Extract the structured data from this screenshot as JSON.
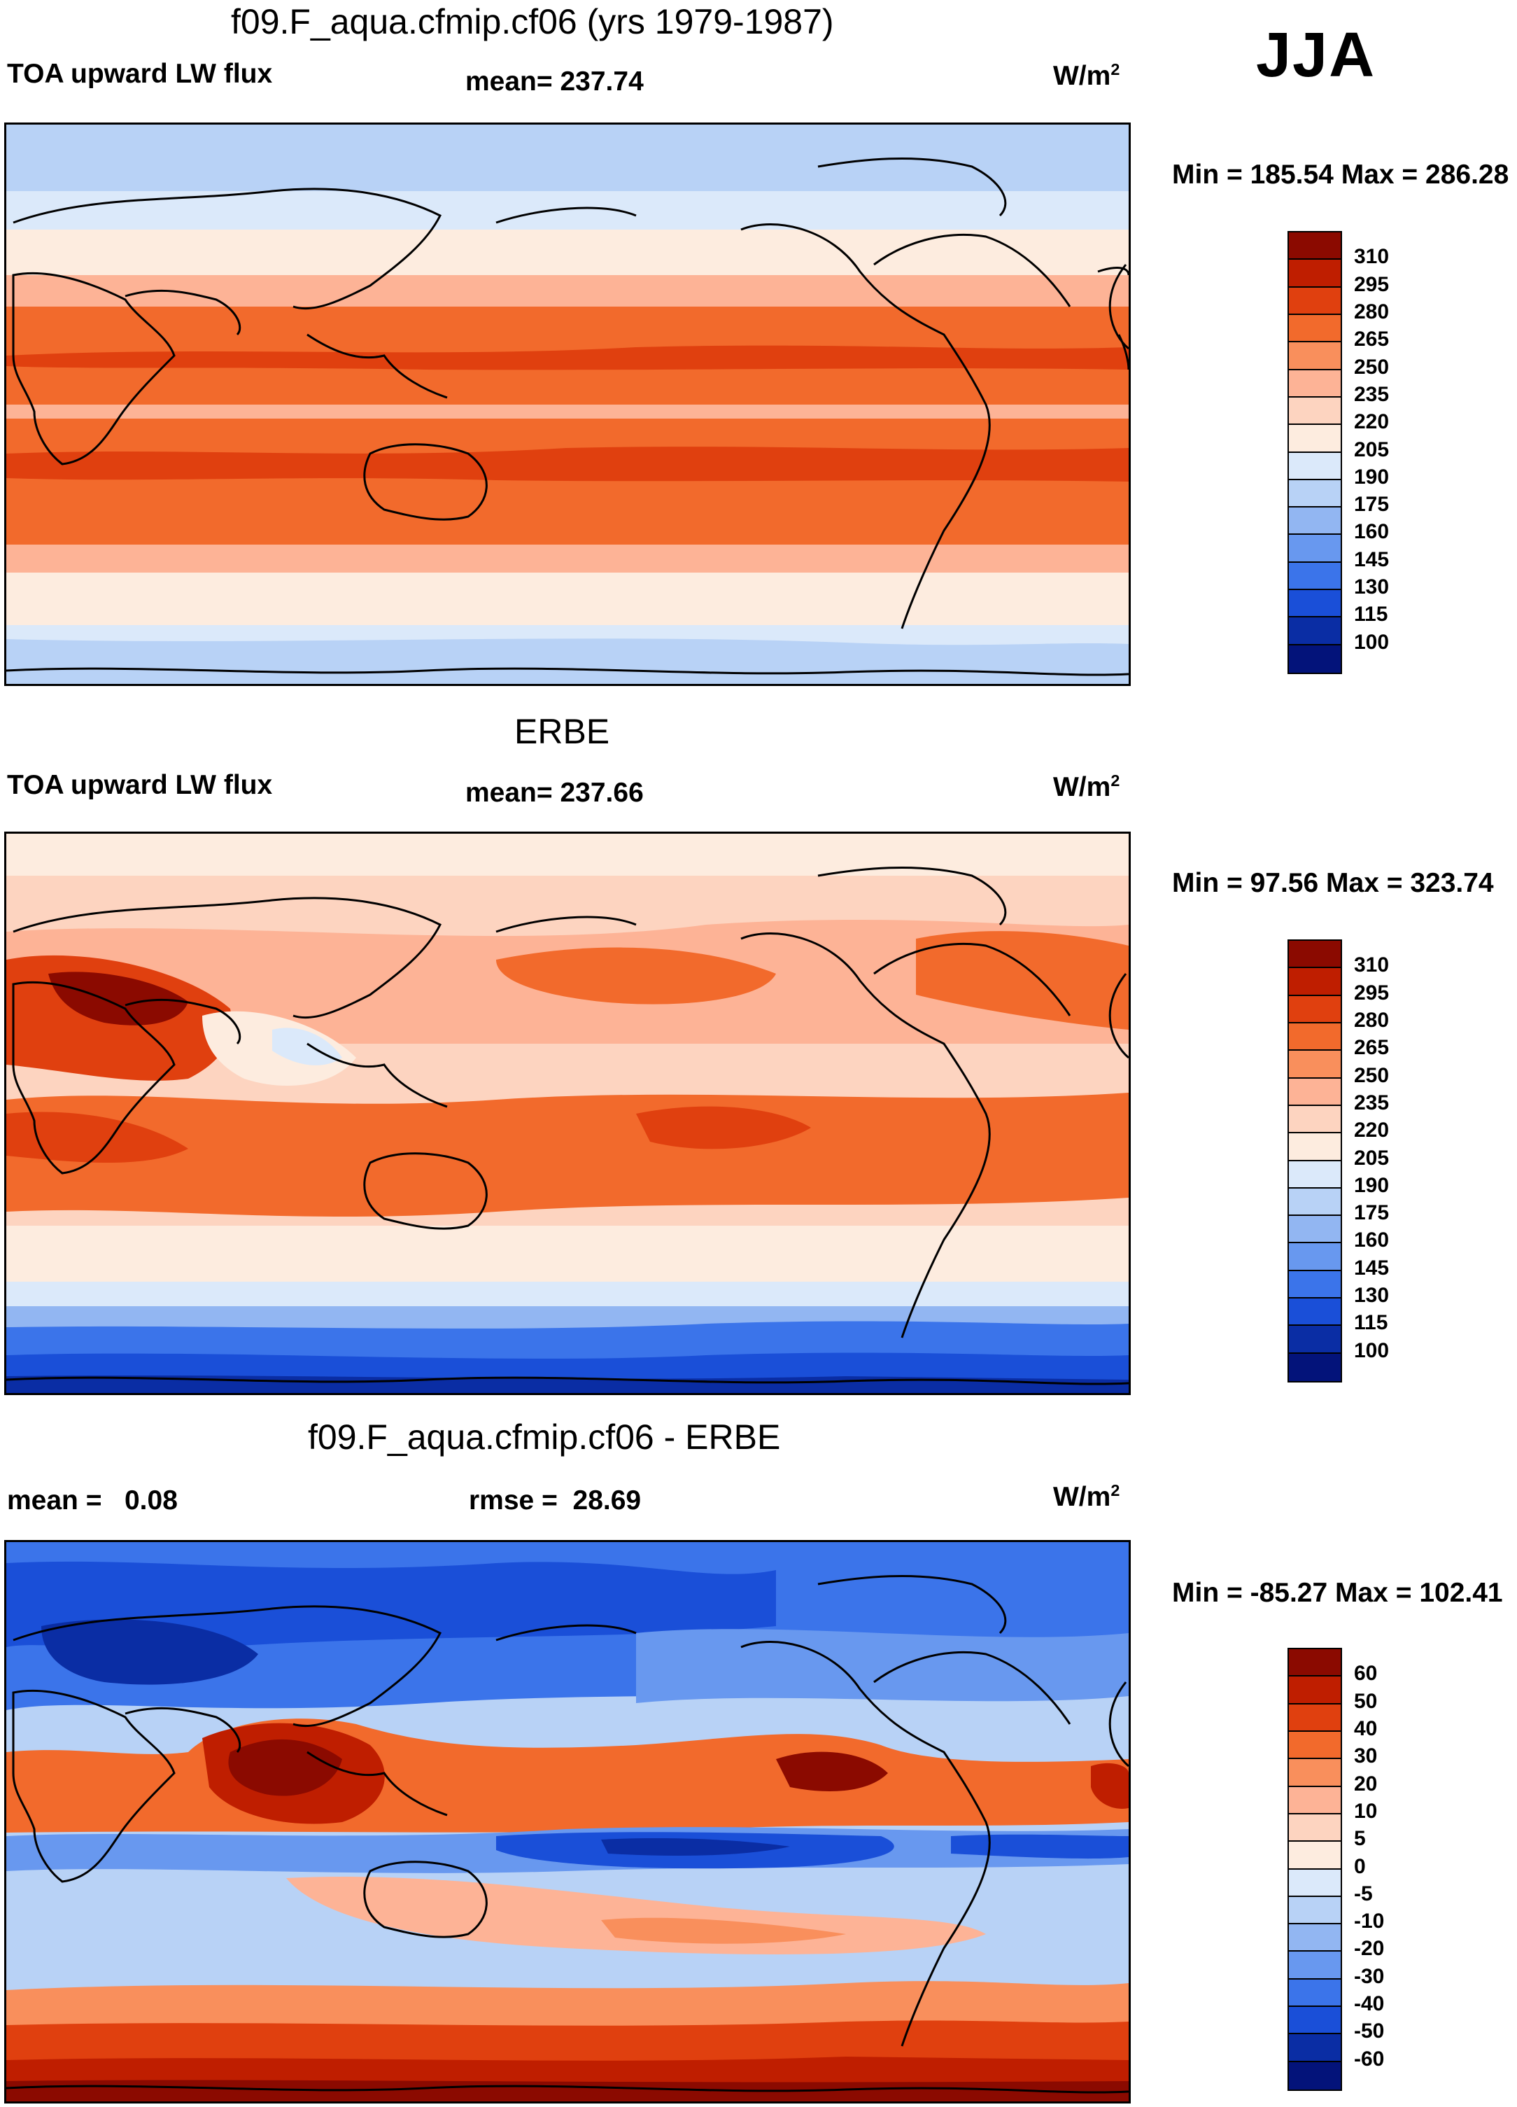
{
  "season": "JJA",
  "units_base": "W/m",
  "units_exp": "2",
  "panels": [
    {
      "title": "f09.F_aqua.cfmip.cf06 (yrs 1979-1987)",
      "left_label": "TOA upward LW flux",
      "center_label": "mean= 237.74",
      "minmax": "Min = 185.54 Max = 286.28"
    },
    {
      "title": "ERBE",
      "left_label": "TOA upward LW flux",
      "center_label": "mean= 237.66",
      "minmax": "Min =  97.56 Max = 323.74"
    },
    {
      "title": "f09.F_aqua.cfmip.cf06 - ERBE",
      "left_label": "mean =   0.08",
      "center_label": "rmse =  28.69",
      "minmax": "Min = -85.27 Max = 102.41"
    }
  ],
  "colorbars": {
    "flux": {
      "labels": [
        "310",
        "295",
        "280",
        "265",
        "250",
        "235",
        "220",
        "205",
        "190",
        "175",
        "160",
        "145",
        "130",
        "115",
        "100"
      ],
      "colors": [
        "#8b0a00",
        "#bf1e00",
        "#e0400f",
        "#f26a2c",
        "#f98f5c",
        "#fdb396",
        "#fdd4c0",
        "#fdecdf",
        "#dbe9fa",
        "#b8d2f6",
        "#92b6f2",
        "#6898ef",
        "#3b74ea",
        "#1a4fd8",
        "#0a2da4",
        "#03137a"
      ]
    },
    "diff": {
      "labels": [
        "60",
        "50",
        "40",
        "30",
        "20",
        "10",
        "5",
        "0",
        "-5",
        "-10",
        "-20",
        "-30",
        "-40",
        "-50",
        "-60"
      ],
      "colors": [
        "#8b0a00",
        "#bf1e00",
        "#e0400f",
        "#f26a2c",
        "#f98f5c",
        "#fdb396",
        "#fdd4c0",
        "#fdecdf",
        "#dbe9fa",
        "#b8d2f6",
        "#92b6f2",
        "#6898ef",
        "#3b74ea",
        "#1a4fd8",
        "#0a2da4",
        "#03137a"
      ]
    }
  }
}
